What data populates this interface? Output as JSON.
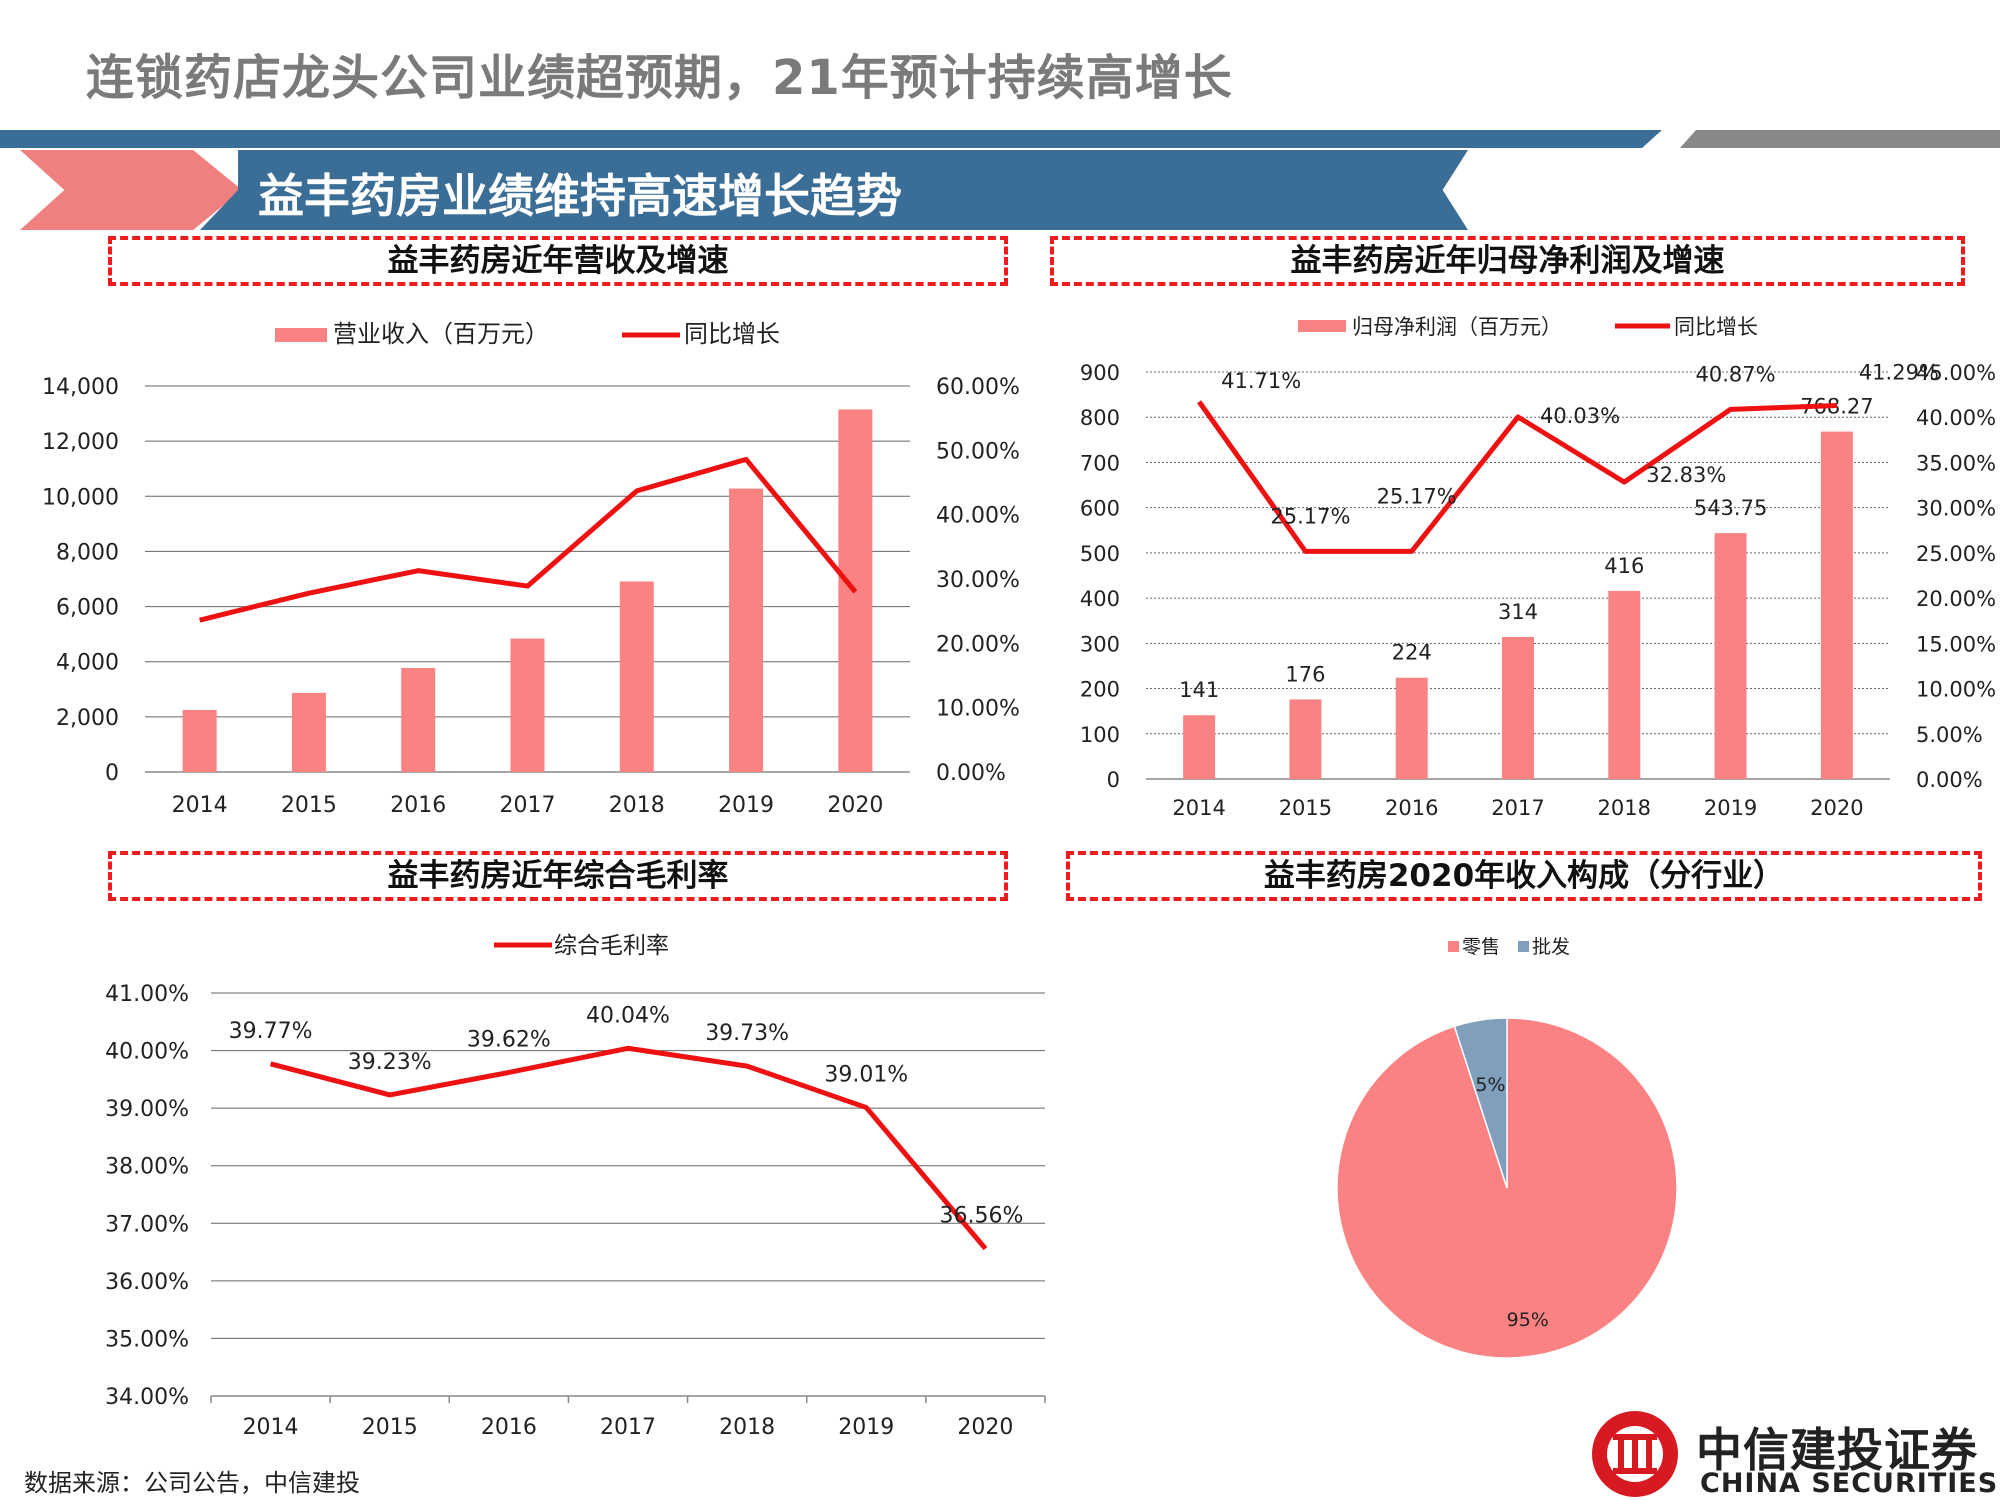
{
  "header": {
    "title": "连锁药店龙头公司业绩超预期，21年预计持续高增长",
    "banner": "益丰药房业绩维持高速增长趋势"
  },
  "colors": {
    "bar": "#fb8282",
    "line": "#ee1111",
    "pie_retail": "#fb8282",
    "pie_wholesale": "#7f9fbc",
    "grid": "#666666"
  },
  "chart_data": [
    {
      "id": "revenue",
      "type": "bar",
      "title": "益丰药房近年营收及增速",
      "categories": [
        "2014",
        "2015",
        "2016",
        "2017",
        "2018",
        "2019",
        "2020"
      ],
      "series": [
        {
          "name": "营业收入（百万元）",
          "type": "bar",
          "axis": "left",
          "values": [
            2250,
            2870,
            3770,
            4840,
            6910,
            10280,
            13150
          ]
        },
        {
          "name": "同比增长",
          "type": "line",
          "axis": "right",
          "values": [
            23.6,
            27.8,
            31.3,
            28.9,
            43.7,
            48.6,
            28.0
          ]
        }
      ],
      "left_axis": {
        "min": 0,
        "max": 14000,
        "step": 2000,
        "ticks": [
          "0",
          "2,000",
          "4,000",
          "6,000",
          "8,000",
          "10,000",
          "12,000",
          "14,000"
        ]
      },
      "right_axis": {
        "min": 0,
        "max": 60,
        "step": 10,
        "ticks": [
          "0.00%",
          "10.00%",
          "20.00%",
          "30.00%",
          "40.00%",
          "50.00%",
          "60.00%"
        ]
      }
    },
    {
      "id": "profit",
      "type": "bar",
      "title": "益丰药房近年归母净利润及增速",
      "categories": [
        "2014",
        "2015",
        "2016",
        "2017",
        "2018",
        "2019",
        "2020"
      ],
      "series": [
        {
          "name": "归母净利润（百万元）",
          "type": "bar",
          "axis": "left",
          "values": [
            141,
            176,
            224,
            314,
            416,
            543.75,
            768.27
          ],
          "labels": [
            "141",
            "176",
            "224",
            "314",
            "416",
            "543.75",
            "768.27"
          ]
        },
        {
          "name": "同比增长",
          "type": "line",
          "axis": "right",
          "values": [
            41.71,
            25.17,
            25.17,
            40.03,
            32.83,
            40.87,
            41.29
          ],
          "labels": [
            "41.71%",
            "25.17%",
            "25.17%",
            "40.03%",
            "32.83%",
            "40.87%",
            "41.29%"
          ]
        }
      ],
      "left_axis": {
        "min": 0,
        "max": 900,
        "step": 100,
        "ticks": [
          "0",
          "100",
          "200",
          "300",
          "400",
          "500",
          "600",
          "700",
          "800",
          "900"
        ]
      },
      "right_axis": {
        "min": 0,
        "max": 45,
        "step": 5,
        "ticks": [
          "0.00%",
          "5.00%",
          "10.00%",
          "15.00%",
          "20.00%",
          "25.00%",
          "30.00%",
          "35.00%",
          "40.00%",
          "45.00%"
        ]
      }
    },
    {
      "id": "margin",
      "type": "line",
      "title": "益丰药房近年综合毛利率",
      "categories": [
        "2014",
        "2015",
        "2016",
        "2017",
        "2018",
        "2019",
        "2020"
      ],
      "series": [
        {
          "name": "综合毛利率",
          "values": [
            39.77,
            39.23,
            39.62,
            40.04,
            39.73,
            39.01,
            36.56
          ],
          "labels": [
            "39.77%",
            "39.23%",
            "39.62%",
            "40.04%",
            "39.73%",
            "39.01%",
            "36.56%"
          ]
        }
      ],
      "left_axis": {
        "min": 34,
        "max": 41,
        "step": 1,
        "ticks": [
          "34.00%",
          "35.00%",
          "36.00%",
          "37.00%",
          "38.00%",
          "39.00%",
          "40.00%",
          "41.00%"
        ]
      }
    },
    {
      "id": "composition",
      "type": "pie",
      "title": "益丰药房2020年收入构成（分行业）",
      "slices": [
        {
          "name": "零售",
          "value": 95,
          "label": "95%"
        },
        {
          "name": "批发",
          "value": 5,
          "label": "5%"
        }
      ]
    }
  ],
  "footer": {
    "source": "数据来源：公司公告，中信建投",
    "logo_cn": "中信建投证券",
    "logo_en": "CHINA SECURITIES"
  }
}
